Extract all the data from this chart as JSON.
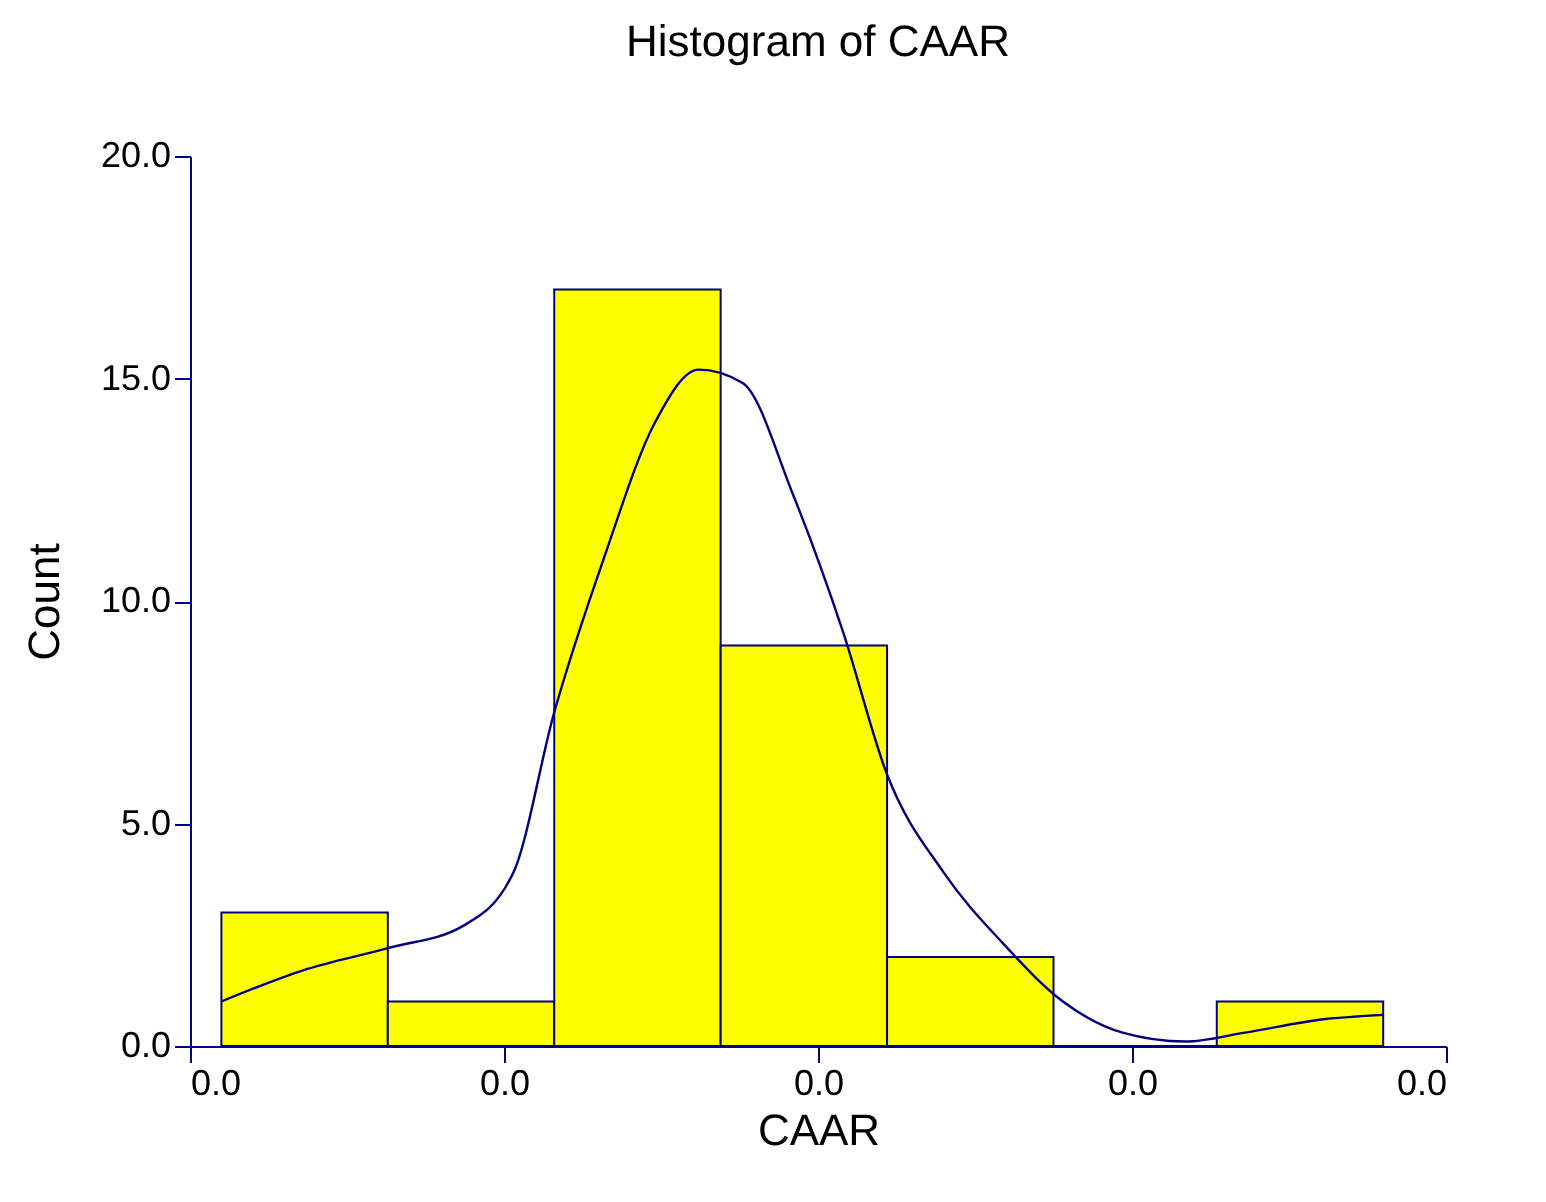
{
  "chart_data": {
    "type": "histogram",
    "title": "Histogram of CAAR",
    "xlabel": "CAAR",
    "ylabel": "Count",
    "bins": [
      0.001,
      0.0063,
      0.0116,
      0.0169,
      0.0222,
      0.0275,
      0.0327,
      0.038
    ],
    "values": [
      3,
      1,
      17,
      9,
      2,
      0,
      1
    ],
    "color": "#ffff00",
    "series": [
      {
        "type": "line",
        "color": "#000080",
        "x": [
          0.001,
          0.0036,
          0.0063,
          0.0087,
          0.0103,
          0.0116,
          0.0132,
          0.0148,
          0.0162,
          0.0176,
          0.0192,
          0.0208,
          0.0222,
          0.024,
          0.0259,
          0.0278,
          0.0297,
          0.0317,
          0.0336,
          0.0361,
          0.038
        ],
        "values": [
          1.0,
          1.7,
          2.2,
          2.7,
          3.9,
          7.5,
          11,
          14,
          15.2,
          14.9,
          12.4,
          9.3,
          6.1,
          3.9,
          2.3,
          1.0,
          0.3,
          0.1,
          0.3,
          0.6,
          0.7
        ]
      }
    ],
    "xlim": [
      0,
      0.04
    ],
    "xticks": [
      {
        "value": 0,
        "label": "0.0"
      },
      {
        "value": 0.01,
        "label": "0.0"
      },
      {
        "value": 0.02,
        "label": "0.0"
      },
      {
        "value": 0.03,
        "label": "0.0"
      },
      {
        "value": 0.04,
        "label": "0.0"
      }
    ],
    "ylim": [
      0,
      20
    ],
    "yticks": [
      {
        "value": 0,
        "label": "0.0"
      },
      {
        "value": 5,
        "label": "5.0"
      },
      {
        "value": 10,
        "label": "10.0"
      },
      {
        "value": 15,
        "label": "15.0"
      },
      {
        "value": 20,
        "label": "20.0"
      }
    ],
    "grid": false
  }
}
